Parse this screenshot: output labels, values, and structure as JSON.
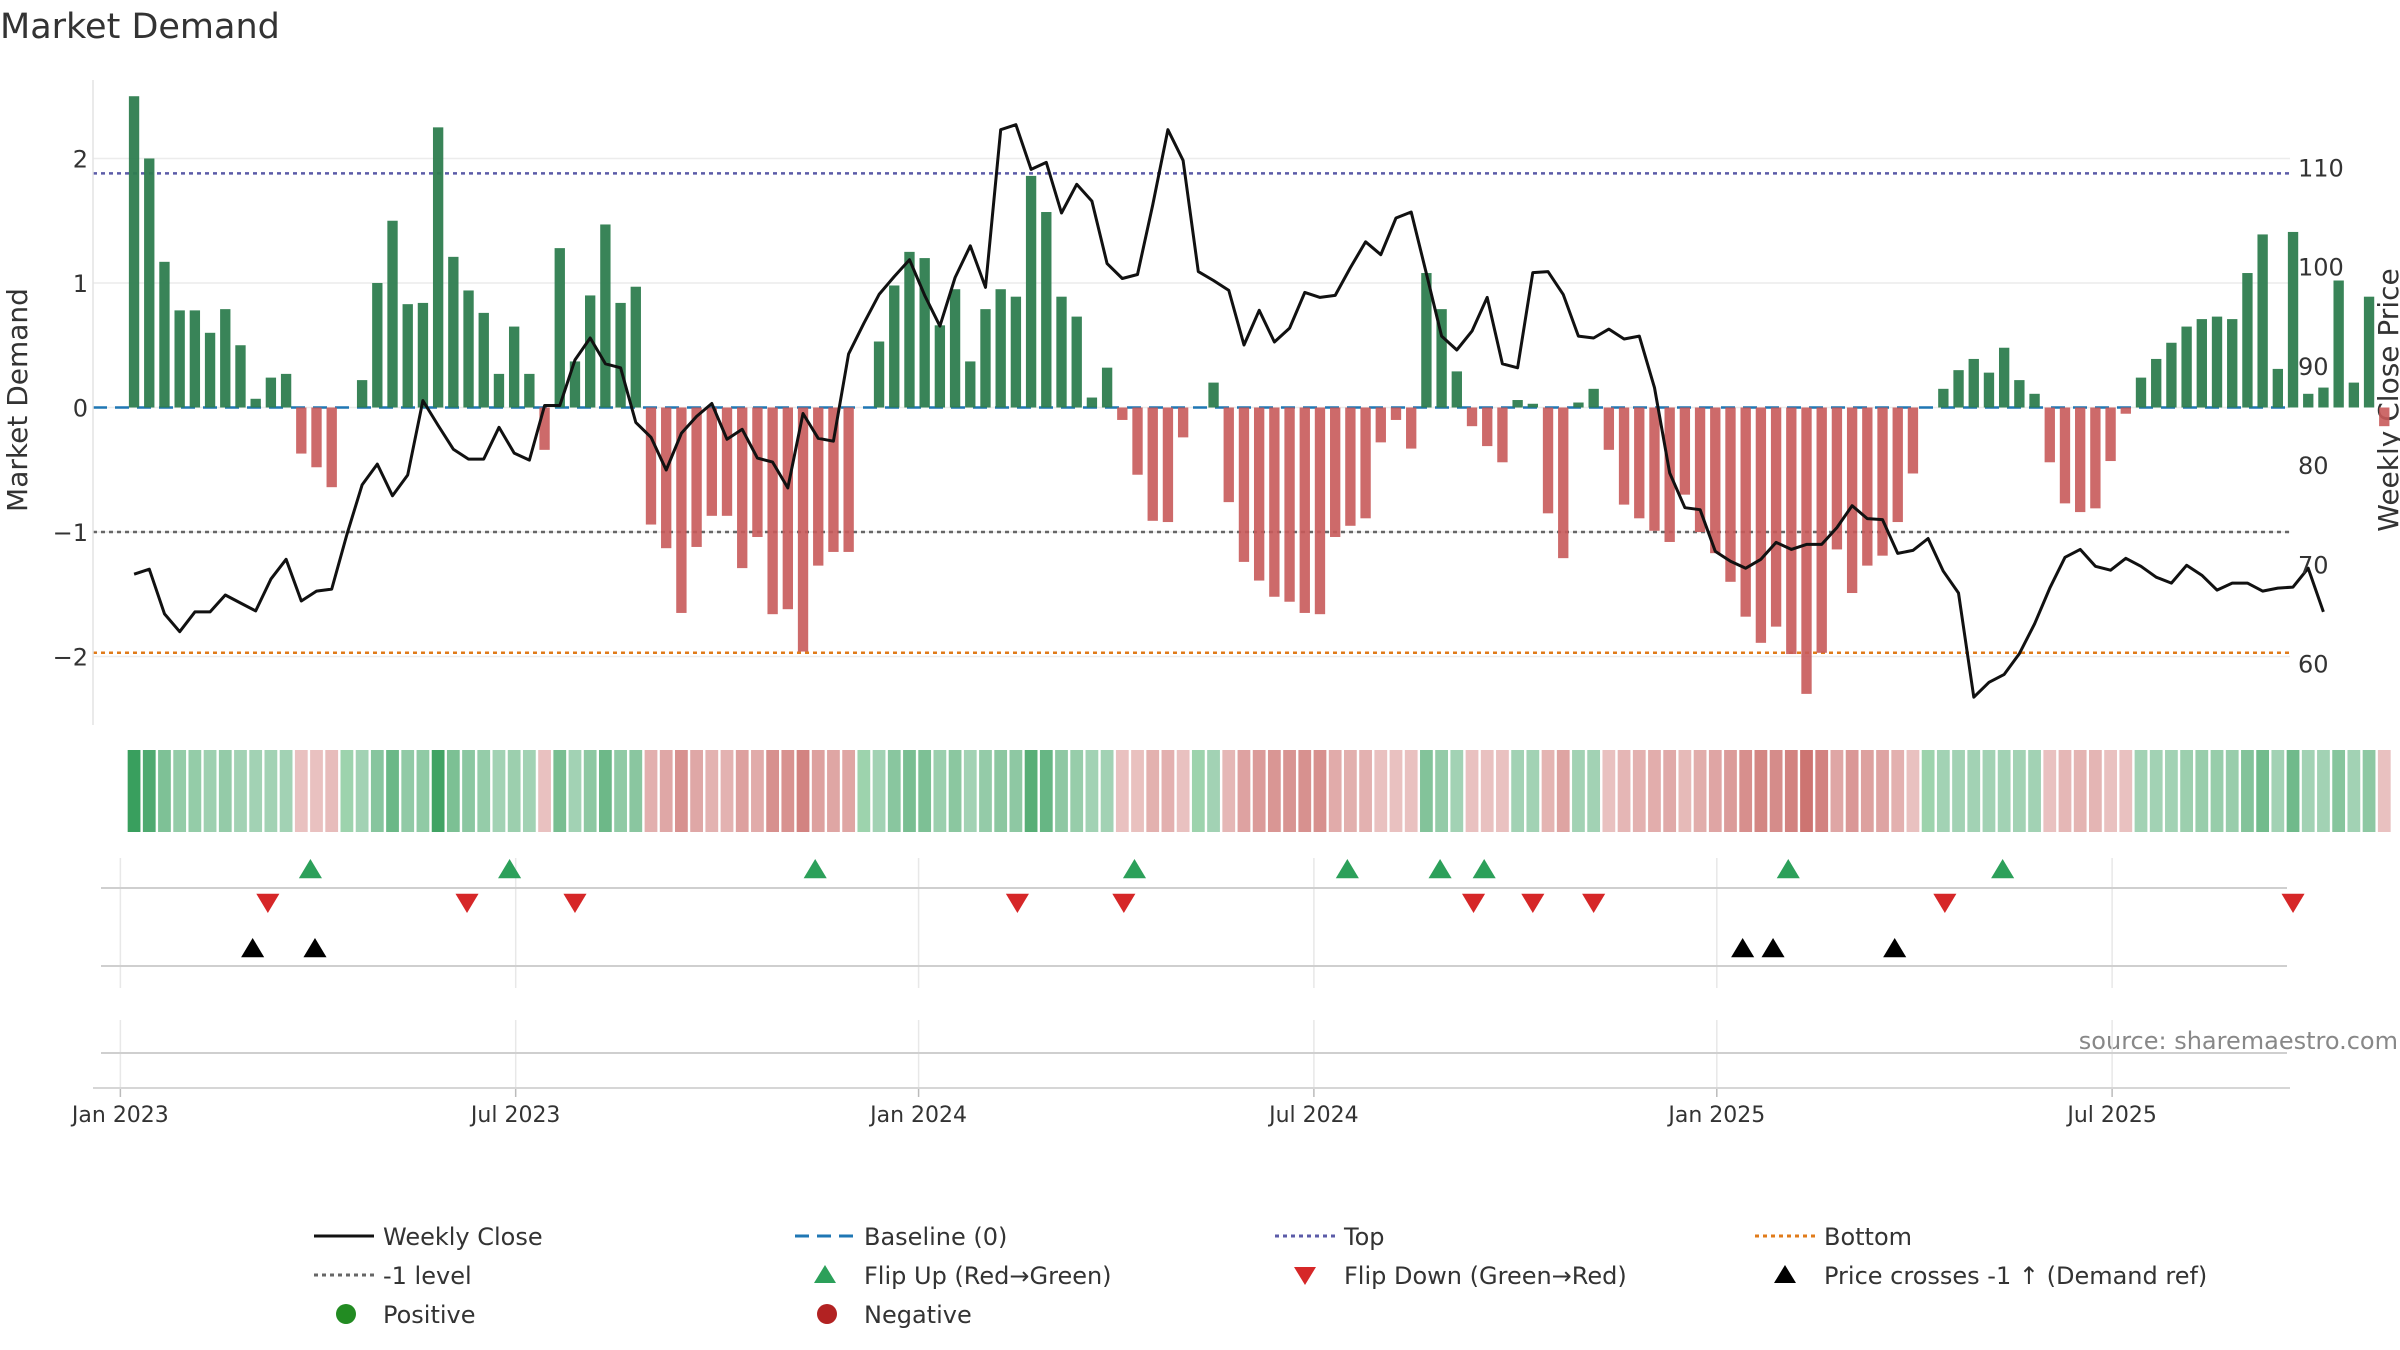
{
  "title": "Market Demand",
  "source": "source: sharemaestro.com",
  "colors": {
    "positive": "#2e7d4f",
    "negative": "#c85a5a",
    "price": "#111111",
    "baseline": "#1f77b4",
    "top": "#5b5ba8",
    "minus1": "#666666",
    "bottom": "#e07b1a",
    "flip_up": "#2ca05a",
    "flip_down": "#d62728",
    "cross": "#000000"
  },
  "chart_data": {
    "type": "bar",
    "title": "Market Demand",
    "ylabel_left": "Market Demand",
    "ylabel_right": "Weekly Close Price",
    "ylim_left": [
      -2.55,
      2.55
    ],
    "ylim_right": [
      53.8,
      117.8
    ],
    "yticks_left": [
      2,
      1,
      0,
      -1,
      -2
    ],
    "ytick_labels_left": [
      "2",
      "1",
      "0",
      "−1",
      "−2"
    ],
    "yticks_right": [
      110,
      100,
      90,
      80,
      70,
      60
    ],
    "ytick_labels_right": [
      "110",
      "100",
      "90",
      "80",
      "70",
      "60"
    ],
    "x_range_weeks": [
      -2.7,
      141.8
    ],
    "x_ticks": [
      {
        "label": "Jan 2023",
        "week": -0.9
      },
      {
        "label": "Jul 2023",
        "week": 25.1
      },
      {
        "label": "Jan 2024",
        "week": 51.6
      },
      {
        "label": "Jul 2024",
        "week": 77.6
      },
      {
        "label": "Jan 2025",
        "week": 104.1
      },
      {
        "label": "Jul 2025",
        "week": 130.1
      }
    ],
    "reference_lines": {
      "top": 1.88,
      "minus_one": -1.0,
      "bottom": -1.97,
      "baseline": 0.0
    },
    "demand": [
      2.5,
      2.0,
      1.17,
      0.78,
      0.78,
      0.6,
      0.79,
      0.5,
      0.07,
      0.24,
      0.27,
      -0.37,
      -0.48,
      -0.64,
      0.0,
      0.22,
      1.0,
      1.5,
      0.83,
      0.84,
      2.25,
      1.21,
      0.94,
      0.76,
      0.27,
      0.65,
      0.27,
      -0.34,
      1.28,
      0.37,
      0.9,
      1.47,
      0.84,
      0.97,
      -0.94,
      -1.13,
      -1.65,
      -1.12,
      -0.87,
      -0.87,
      -1.29,
      -1.04,
      -1.66,
      -1.62,
      -1.96,
      -1.27,
      -1.16,
      -1.16,
      0.0,
      0.53,
      0.98,
      1.25,
      1.2,
      0.66,
      0.95,
      0.37,
      0.79,
      0.95,
      0.89,
      1.86,
      1.57,
      0.89,
      0.73,
      0.08,
      0.32,
      -0.1,
      -0.54,
      -0.91,
      -0.92,
      -0.24,
      0.0,
      0.2,
      -0.76,
      -1.24,
      -1.39,
      -1.52,
      -1.56,
      -1.65,
      -1.66,
      -1.04,
      -0.95,
      -0.89,
      -0.28,
      -0.1,
      -0.33,
      1.08,
      0.79,
      0.29,
      -0.15,
      -0.31,
      -0.44,
      0.06,
      0.03,
      -0.85,
      -1.21,
      0.04,
      0.15,
      -0.34,
      -0.78,
      -0.89,
      -0.99,
      -1.08,
      -0.7,
      -1.0,
      -1.17,
      -1.4,
      -1.68,
      -1.89,
      -1.76,
      -1.98,
      -2.3,
      -1.97,
      -1.14,
      -1.49,
      -1.27,
      -1.19,
      -0.92,
      -0.53,
      0.0,
      0.15,
      0.3,
      0.39,
      0.28,
      0.48,
      0.22,
      0.11,
      -0.44,
      -0.77,
      -0.84,
      -0.81,
      -0.43,
      -0.05,
      0.24,
      0.39,
      0.52,
      0.65,
      0.71,
      0.73,
      0.71,
      1.08,
      1.39,
      0.31,
      1.41,
      0.11,
      0.16,
      1.02,
      0.2,
      0.89,
      -0.15
    ],
    "price": [
      69.0,
      69.5,
      65.0,
      63.2,
      65.2,
      65.2,
      66.9,
      66.1,
      65.3,
      68.5,
      70.5,
      66.3,
      67.3,
      67.5,
      73.0,
      78.0,
      80.1,
      76.9,
      79.0,
      86.5,
      84.0,
      81.6,
      80.6,
      80.6,
      83.8,
      81.2,
      80.5,
      86.0,
      86.0,
      90.6,
      92.8,
      90.2,
      89.8,
      84.3,
      82.8,
      79.5,
      83.2,
      84.9,
      86.2,
      82.6,
      83.6,
      80.7,
      80.3,
      77.7,
      85.2,
      82.7,
      82.4,
      91.2,
      94.3,
      97.2,
      99.0,
      100.7,
      97.1,
      94.0,
      98.9,
      102.1,
      97.9,
      113.8,
      114.3,
      109.8,
      110.5,
      105.4,
      108.3,
      106.6,
      100.3,
      98.8,
      99.2,
      106.2,
      113.8,
      110.7,
      99.5,
      98.6,
      97.6,
      92.1,
      95.6,
      92.4,
      93.8,
      97.4,
      96.9,
      97.1,
      99.9,
      102.5,
      101.2,
      104.9,
      105.5,
      99.3,
      93.0,
      91.6,
      93.5,
      96.9,
      90.2,
      89.8,
      99.4,
      99.5,
      97.2,
      93.0,
      92.8,
      93.7,
      92.7,
      93.0,
      87.8,
      79.2,
      75.7,
      75.5,
      71.3,
      70.3,
      69.6,
      70.5,
      72.2,
      71.5,
      72.0,
      72.0,
      73.7,
      75.9,
      74.6,
      74.5,
      71.1,
      71.4,
      72.6,
      69.3,
      67.1,
      56.6,
      58.1,
      58.9,
      61.0,
      64.0,
      67.6,
      70.7,
      71.5,
      69.8,
      69.4,
      70.6,
      69.8,
      68.7,
      68.1,
      69.9,
      68.9,
      67.4,
      68.1,
      68.1,
      67.3,
      67.6,
      67.7,
      69.6,
      65.2
    ],
    "flip_up_weeks": [
      11.6,
      24.7,
      44.8,
      65.8,
      79.8,
      85.9,
      88.8,
      108.8,
      122.9
    ],
    "flip_down_weeks": [
      8.8,
      21.9,
      29.0,
      58.1,
      65.1,
      88.1,
      92.0,
      96.0,
      119.1,
      142.0
    ],
    "price_cross_weeks": [
      7.8,
      11.9,
      105.8,
      107.8,
      115.8
    ]
  },
  "legend": [
    {
      "label": "Weekly Close",
      "symbol": "line-solid",
      "color": "#111111"
    },
    {
      "label": "Baseline (0)",
      "symbol": "line-dash",
      "color": "#1f77b4"
    },
    {
      "label": "Top",
      "symbol": "line-dot",
      "color": "#5b5ba8"
    },
    {
      "label": "Bottom",
      "symbol": "line-dot",
      "color": "#e07b1a"
    },
    {
      "label": "-1 level",
      "symbol": "line-dot",
      "color": "#666666"
    },
    {
      "label": "Flip Up (Red→Green)",
      "symbol": "triangle-up",
      "color": "#2ca05a"
    },
    {
      "label": "Flip Down (Green→Red)",
      "symbol": "triangle-down",
      "color": "#d62728"
    },
    {
      "label": "Price crosses -1 ↑ (Demand ref)",
      "symbol": "triangle-up",
      "color": "#000000"
    },
    {
      "label": "Positive",
      "symbol": "circle",
      "color": "#228b22"
    },
    {
      "label": "Negative",
      "symbol": "circle",
      "color": "#b22222"
    }
  ]
}
